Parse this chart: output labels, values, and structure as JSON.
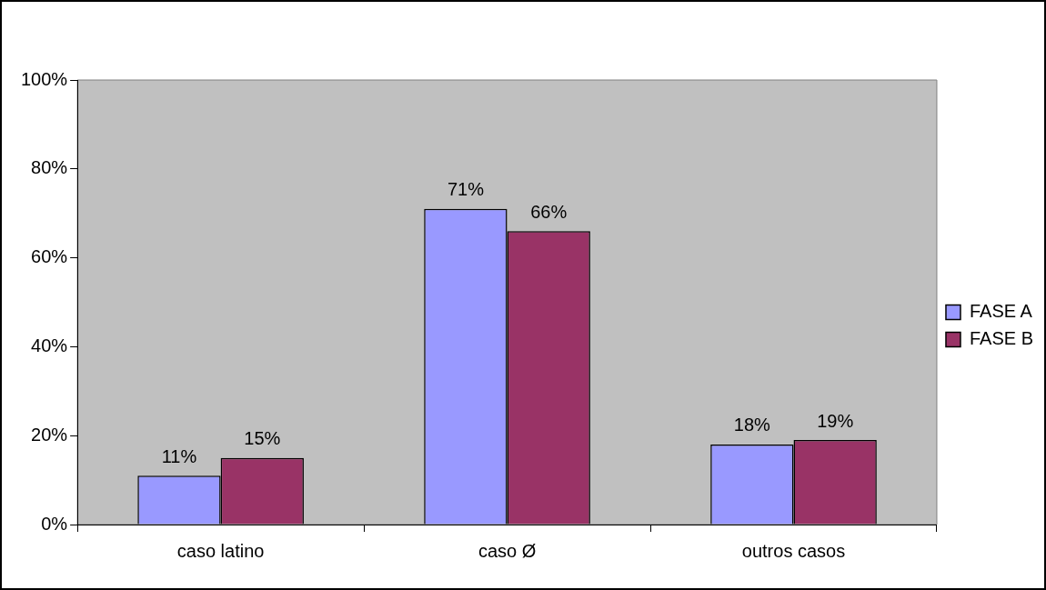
{
  "chart_data": {
    "type": "bar",
    "categories": [
      "caso latino",
      "caso Ø",
      "outros casos"
    ],
    "series": [
      {
        "name": "FASE A",
        "color": "#9999ff",
        "values": [
          11,
          71,
          18
        ],
        "value_labels": [
          "11%",
          "71%",
          "18%"
        ]
      },
      {
        "name": "FASE B",
        "color": "#993366",
        "values": [
          15,
          66,
          19
        ],
        "value_labels": [
          "15%",
          "66%",
          "19%"
        ]
      }
    ],
    "ylim": [
      0,
      100
    ],
    "yticks": [
      {
        "value": 0,
        "label": "0%"
      },
      {
        "value": 20,
        "label": "20%"
      },
      {
        "value": 40,
        "label": "40%"
      },
      {
        "value": 60,
        "label": "60%"
      },
      {
        "value": 80,
        "label": "80%"
      },
      {
        "value": 100,
        "label": "100%"
      }
    ],
    "grid": false,
    "legend": "right"
  }
}
